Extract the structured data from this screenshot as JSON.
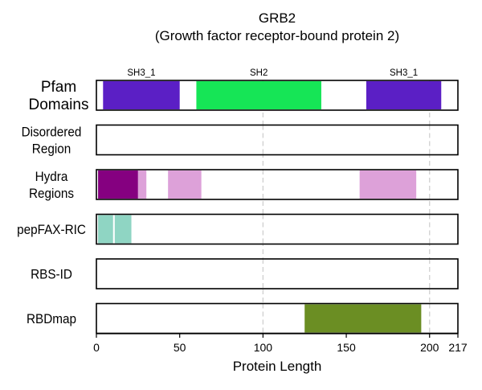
{
  "chart_data": {
    "type": "track",
    "title": "GRB2",
    "subtitle": "(Growth factor receptor-bound protein 2)",
    "xlabel": "Protein Length",
    "xlim": [
      0,
      217
    ],
    "xticks": [
      0,
      50,
      100,
      150,
      200,
      217
    ],
    "reference_lines": [
      100,
      200
    ],
    "tracks": [
      {
        "label": "Pfam\nDomains",
        "segments": [
          {
            "start": 4,
            "end": 50,
            "color": "#5b1fc5",
            "label": "SH3_1"
          },
          {
            "start": 60,
            "end": 135,
            "color": "#16e556",
            "label": "SH2"
          },
          {
            "start": 162,
            "end": 207,
            "color": "#5b1fc5",
            "label": "SH3_1"
          }
        ]
      },
      {
        "label": "Disordered\nRegion",
        "segments": []
      },
      {
        "label": "Hydra\nRegions",
        "segments": [
          {
            "start": 1,
            "end": 25,
            "color": "#850080"
          },
          {
            "start": 25,
            "end": 30,
            "color": "#dda1d9"
          },
          {
            "start": 43,
            "end": 63,
            "color": "#dda1d9"
          },
          {
            "start": 158,
            "end": 192,
            "color": "#dda1d9"
          }
        ]
      },
      {
        "label": "pepFAX-RIC",
        "segments": [
          {
            "start": 1,
            "end": 10,
            "color": "#8fd5c3"
          },
          {
            "start": 11,
            "end": 21,
            "color": "#8fd5c3"
          }
        ]
      },
      {
        "label": "RBS-ID",
        "segments": []
      },
      {
        "label": "RBDmap",
        "segments": [
          {
            "start": 125,
            "end": 195,
            "color": "#6b8e23"
          }
        ]
      }
    ]
  }
}
